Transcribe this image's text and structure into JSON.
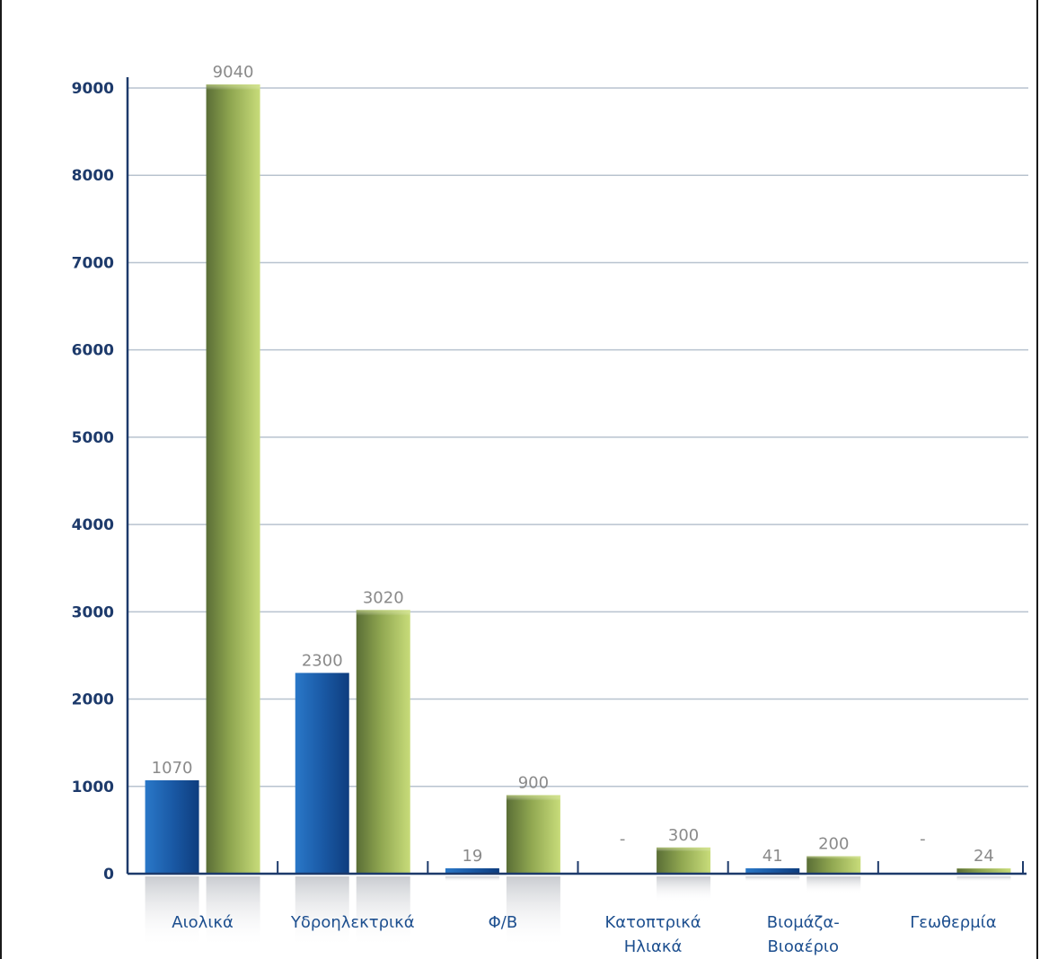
{
  "chart_data": {
    "type": "bar",
    "categories": [
      [
        "Αιολικά"
      ],
      [
        "Υδροηλεκτρικά"
      ],
      [
        "Φ/Β"
      ],
      [
        "Κατοπτρικά",
        "Ηλιακά"
      ],
      [
        "Βιομάζα-",
        "Βιοαέριο"
      ],
      [
        "Γεωθερμία"
      ]
    ],
    "series": [
      {
        "values": [
          1070,
          2300,
          19,
          null,
          41,
          null
        ],
        "labels": [
          "1070",
          "2300",
          "19",
          "-",
          "41",
          "-"
        ],
        "color": "#1a5aa6"
      },
      {
        "values": [
          9040,
          3020,
          900,
          300,
          200,
          24
        ],
        "labels": [
          "9040",
          "3020",
          "900",
          "300",
          "200",
          "24"
        ],
        "color": "#8da64e"
      }
    ],
    "y_ticks": [
      "0",
      "1000",
      "2000",
      "3000",
      "4000",
      "5000",
      "6000",
      "7000",
      "8000",
      "9000"
    ],
    "ylim": [
      0,
      9000
    ],
    "grid": true,
    "legend": "none",
    "title": "",
    "xlabel": "",
    "ylabel": ""
  },
  "colors": {
    "accent_header": "#e8541c",
    "axis": "#1d3a6b",
    "grid": "#b8c3cf"
  }
}
